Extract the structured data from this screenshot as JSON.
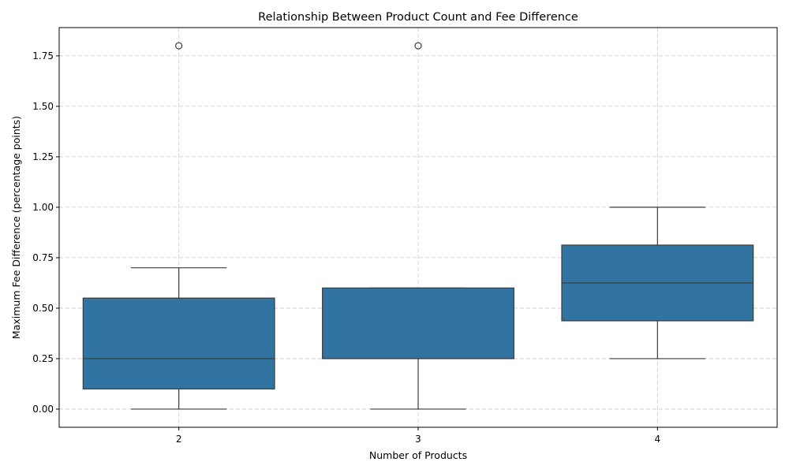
{
  "chart_data": {
    "type": "box",
    "title": "Relationship Between Product Count and Fee Difference",
    "xlabel": "Number of Products",
    "ylabel": "Maximum Fee Difference (percentage points)",
    "categories": [
      "2",
      "3",
      "4"
    ],
    "ylim": [
      -0.09,
      1.89
    ],
    "yticks": [
      0.0,
      0.25,
      0.5,
      0.75,
      1.0,
      1.25,
      1.5,
      1.75
    ],
    "ytick_labels": [
      "0.00",
      "0.25",
      "0.50",
      "0.75",
      "1.00",
      "1.25",
      "1.50",
      "1.75"
    ],
    "grid": true,
    "box_color": "#3274a1",
    "boxes": [
      {
        "category": "2",
        "whisker_low": 0.0,
        "q1": 0.1,
        "median": 0.25,
        "q3": 0.55,
        "whisker_high": 0.7,
        "outliers": [
          1.8
        ]
      },
      {
        "category": "3",
        "whisker_low": 0.0,
        "q1": 0.25,
        "median": 0.25,
        "q3": 0.6,
        "whisker_high": 0.6,
        "outliers": [
          1.8
        ]
      },
      {
        "category": "4",
        "whisker_low": 0.25,
        "q1": 0.4375,
        "median": 0.625,
        "q3": 0.8125,
        "whisker_high": 1.0,
        "outliers": []
      }
    ]
  }
}
